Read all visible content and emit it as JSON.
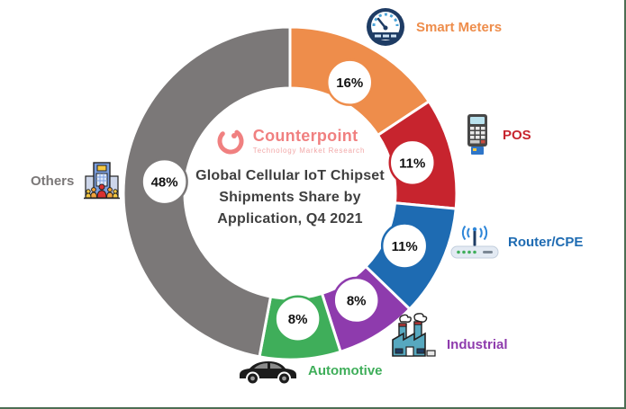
{
  "page": {
    "background": "#ffffff",
    "frame_border_color": "#4d6e54"
  },
  "branding": {
    "name": "Counterpoint",
    "tagline": "Technology Market Research",
    "color": "#f08080"
  },
  "chart_data": {
    "type": "pie",
    "donut": true,
    "title": "Global Cellular IoT Chipset Shipments Share by Application, Q4 2021",
    "title_lines": [
      "Global Cellular IoT Chipset",
      "Shipments Share by",
      "Application, Q4 2021"
    ],
    "start_angle": "top",
    "direction": "clockwise",
    "legend_position": "around-callouts",
    "badge_text_color": "#111111",
    "badge_fill": "#ffffff",
    "segments": [
      {
        "label": "Smart Meters",
        "value": 16,
        "display": "16%",
        "color": "#EE8D4B",
        "icon": "gauge-icon"
      },
      {
        "label": "POS",
        "value": 11,
        "display": "11%",
        "color": "#C7242E",
        "icon": "pos-terminal-icon"
      },
      {
        "label": "Router/CPE",
        "value": 11,
        "display": "11%",
        "color": "#1E6BB2",
        "icon": "router-icon"
      },
      {
        "label": "Industrial",
        "value": 8,
        "display": "8%",
        "color": "#8E3BAD",
        "icon": "factory-icon"
      },
      {
        "label": "Automotive",
        "value": 8,
        "display": "8%",
        "color": "#3FAE5A",
        "icon": "car-icon"
      },
      {
        "label": "Others",
        "value": 48,
        "display": "48%",
        "color": "#7B7878",
        "icon": "building-icon"
      }
    ]
  }
}
